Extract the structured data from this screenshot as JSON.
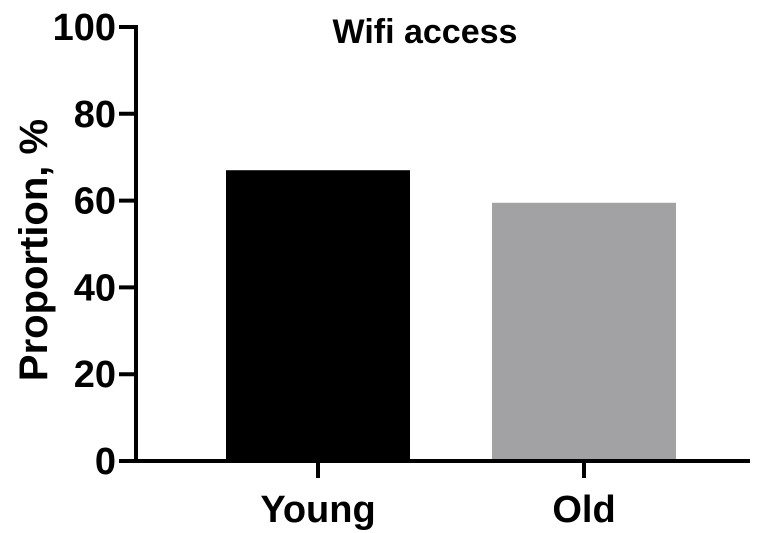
{
  "chart_data": {
    "type": "bar",
    "title": "Wifi access",
    "xlabel": "",
    "ylabel": "Proportion, %",
    "ylim": [
      0,
      100
    ],
    "yticks": [
      0,
      20,
      40,
      60,
      80,
      100
    ],
    "categories": [
      "Young",
      "Old"
    ],
    "values": [
      67,
      59.5
    ],
    "colors": [
      "#000000",
      "#a2a2a5"
    ],
    "grid": false,
    "legend": "none"
  }
}
